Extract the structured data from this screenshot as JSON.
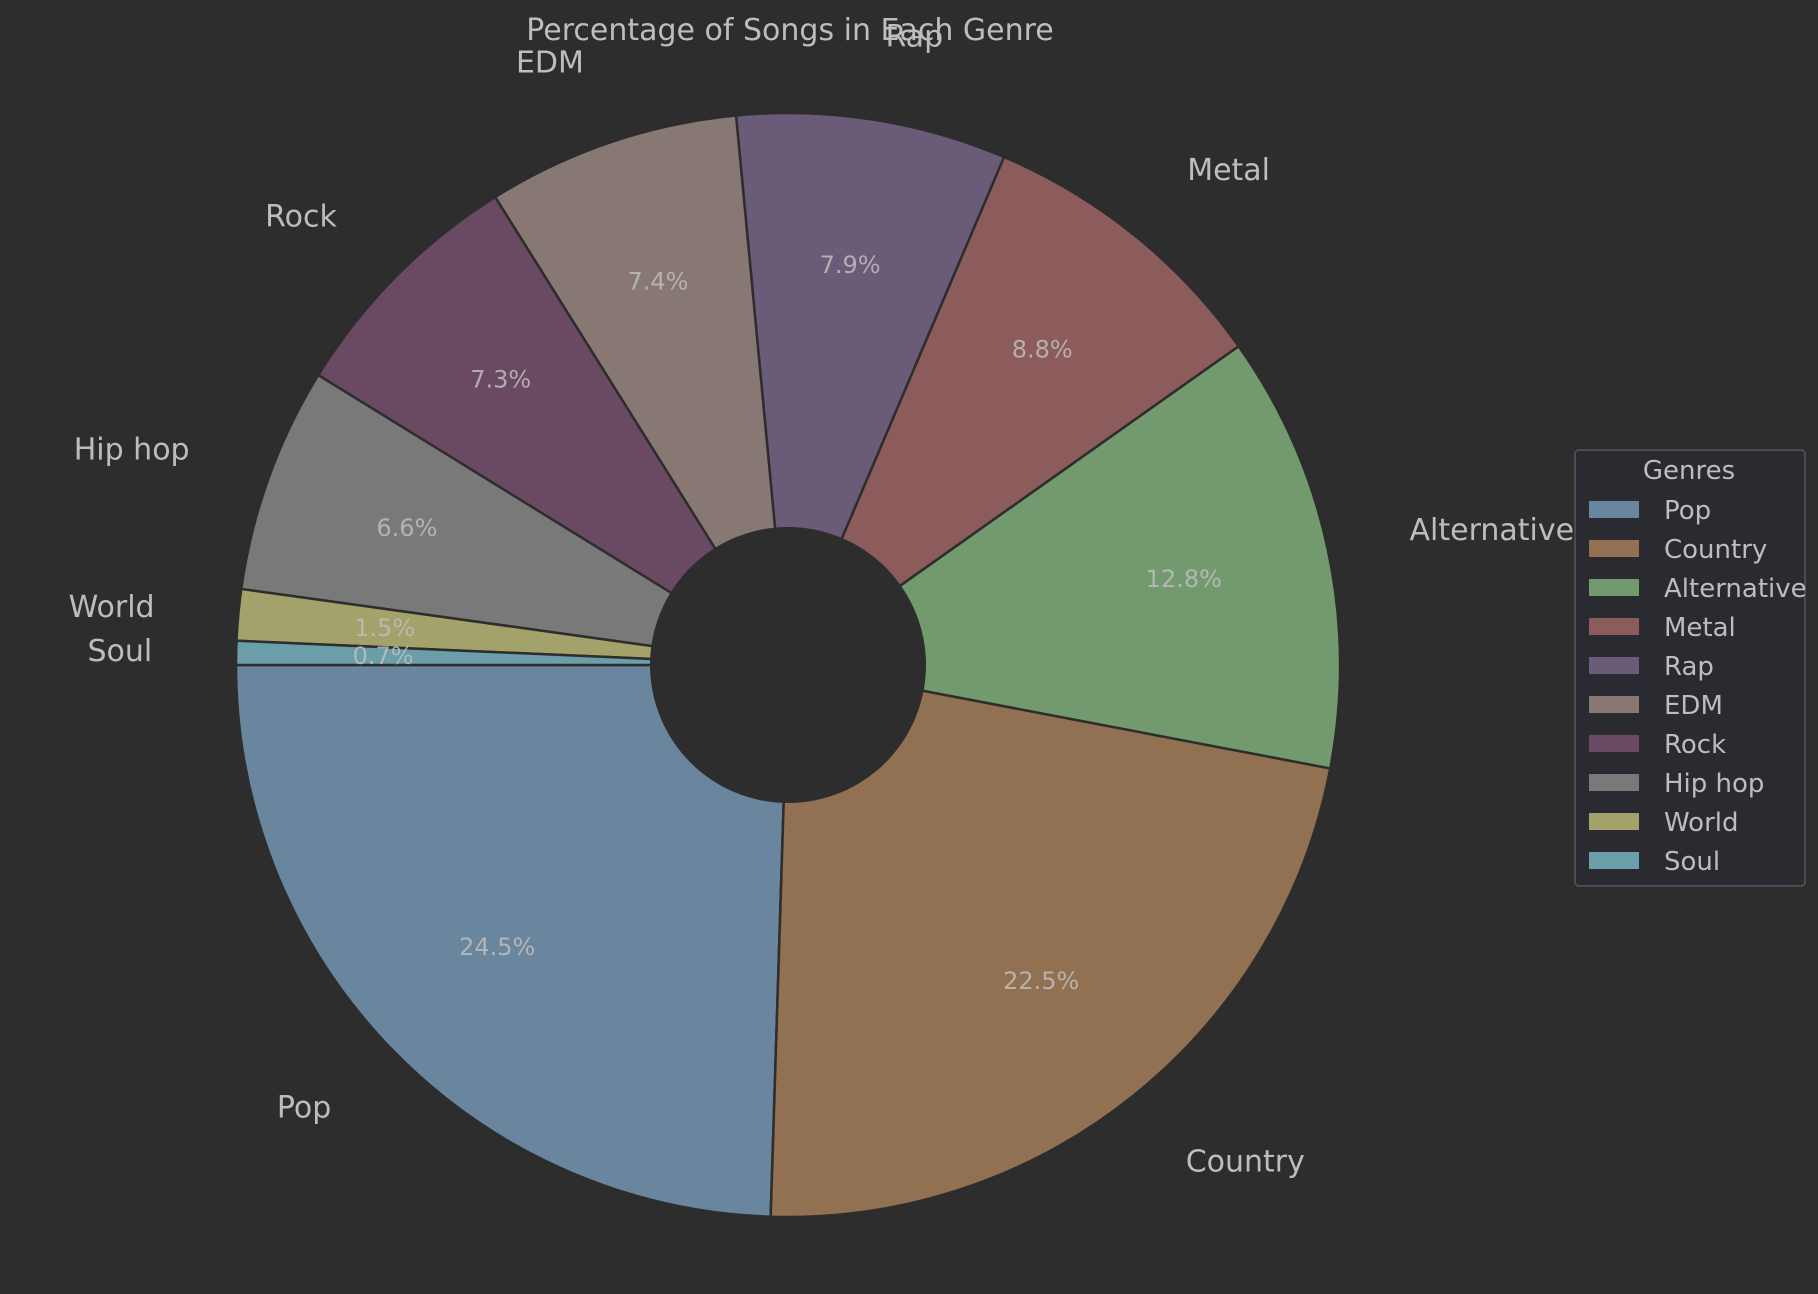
{
  "chart_data": {
    "type": "pie",
    "title": "Percentage of Songs in Each Genre",
    "categories": [
      "Pop",
      "Country",
      "Alternative",
      "Metal",
      "Rap",
      "EDM",
      "Rock",
      "Hip hop",
      "World",
      "Soul"
    ],
    "values": [
      24.5,
      22.5,
      12.8,
      8.8,
      7.9,
      7.4,
      7.3,
      6.6,
      1.5,
      0.7
    ],
    "value_labels": [
      "24.5%",
      "22.5%",
      "12.8%",
      "8.8%",
      "7.9%",
      "7.4%",
      "7.3%",
      "6.6%",
      "1.5%",
      "0.7%"
    ],
    "colors": [
      "#6a869e",
      "#927052",
      "#739a6e",
      "#8b5c5b",
      "#6a5c79",
      "#887873",
      "#6a4a62",
      "#797979",
      "#a2a26a",
      "#6a9ea8"
    ],
    "donut": true,
    "legend": {
      "title": "Genres",
      "position": "right",
      "entries": [
        "Pop",
        "Country",
        "Alternative",
        "Metal",
        "Rap",
        "EDM",
        "Rock",
        "Hip hop",
        "World",
        "Soul"
      ]
    }
  },
  "colors": {
    "background": "#2d2d2d",
    "text": "#bdbdbd",
    "slice_edge": "#2d2d2d"
  }
}
